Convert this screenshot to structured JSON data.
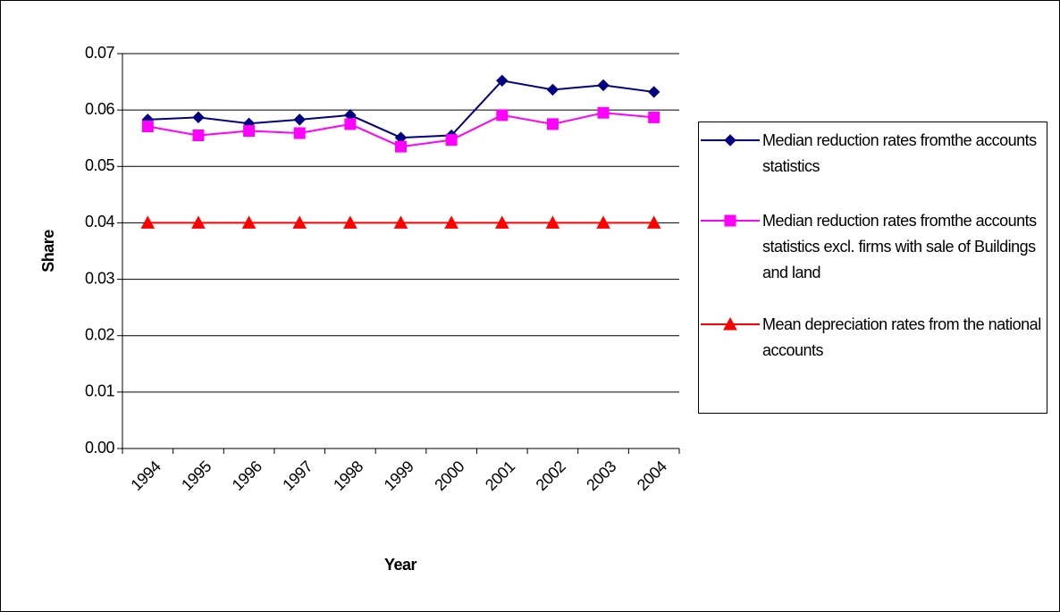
{
  "chart_data": {
    "type": "line",
    "categories": [
      "1994",
      "1995",
      "1996",
      "1997",
      "1998",
      "1999",
      "2000",
      "2001",
      "2002",
      "2003",
      "2004"
    ],
    "series": [
      {
        "name": "Median reduction rates fromthe accounts statistics",
        "color": "#000080",
        "marker": "diamond",
        "values": [
          0.0583,
          0.0587,
          0.0576,
          0.0583,
          0.0591,
          0.0551,
          0.0555,
          0.0652,
          0.0636,
          0.0644,
          0.0632
        ]
      },
      {
        "name": "Median reduction rates fromthe accounts statistics excl. firms with sale of Buildings and land",
        "color": "#ff00ff",
        "marker": "square",
        "values": [
          0.0571,
          0.0555,
          0.0563,
          0.0559,
          0.0575,
          0.0535,
          0.0547,
          0.0591,
          0.0575,
          0.0595,
          0.0587
        ]
      },
      {
        "name": "Mean depreciation rates from the national accounts",
        "color": "#ff0000",
        "marker": "triangle",
        "values": [
          0.04,
          0.04,
          0.04,
          0.04,
          0.04,
          0.04,
          0.04,
          0.04,
          0.04,
          0.04,
          0.04
        ]
      }
    ],
    "x_label": "Year",
    "y_label": "Share",
    "ylim": [
      0,
      0.07
    ],
    "yticks": [
      {
        "value": 0,
        "label": "0.00"
      },
      0.01,
      0.02,
      0.03,
      0.04,
      0.05,
      0.06,
      0.07
    ],
    "grid": true,
    "legend": "right"
  }
}
